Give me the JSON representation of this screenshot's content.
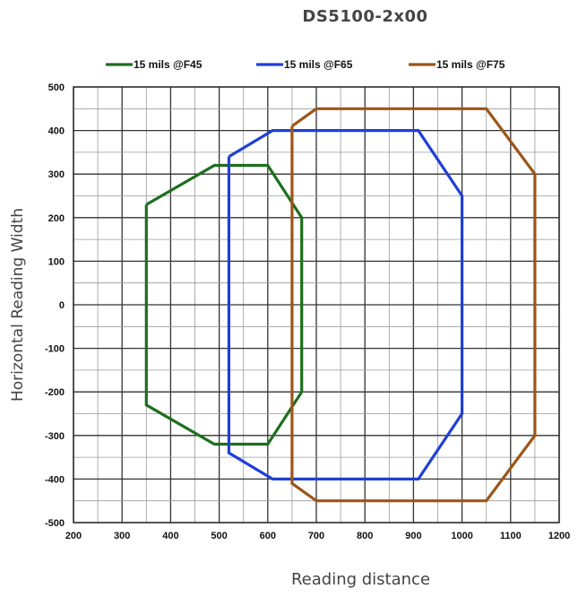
{
  "chart_data": {
    "type": "line",
    "title": "DS5100-2x00",
    "xlabel": "Reading distance",
    "ylabel": "Horizontal Reading Width",
    "xlim": [
      200,
      1200
    ],
    "ylim": [
      -500,
      500
    ],
    "x_ticks": [
      "200",
      "300",
      "400",
      "500",
      "600",
      "700",
      "800",
      "900",
      "1000",
      "1100",
      "1200"
    ],
    "y_ticks": [
      "500",
      "400",
      "300",
      "200",
      "100",
      "0",
      "-100",
      "-200",
      "-300",
      "-400",
      "-500"
    ],
    "grid": true,
    "legend_position": "top",
    "series": [
      {
        "name": "15 mils @F45",
        "color": "#1e6e1e",
        "points": [
          [
            350,
            230
          ],
          [
            490,
            320
          ],
          [
            600,
            320
          ],
          [
            670,
            200
          ],
          [
            670,
            -200
          ],
          [
            600,
            -320
          ],
          [
            490,
            -320
          ],
          [
            350,
            -230
          ],
          [
            350,
            230
          ]
        ]
      },
      {
        "name": "15 mils @F65",
        "color": "#1f3fd6",
        "points": [
          [
            520,
            340
          ],
          [
            610,
            400
          ],
          [
            910,
            400
          ],
          [
            1000,
            250
          ],
          [
            1000,
            -250
          ],
          [
            910,
            -400
          ],
          [
            610,
            -400
          ],
          [
            520,
            -340
          ],
          [
            520,
            340
          ]
        ]
      },
      {
        "name": "15 mils @F75",
        "color": "#9c5518",
        "points": [
          [
            650,
            410
          ],
          [
            700,
            450
          ],
          [
            1050,
            450
          ],
          [
            1150,
            300
          ],
          [
            1150,
            -300
          ],
          [
            1050,
            -450
          ],
          [
            700,
            -450
          ],
          [
            650,
            -410
          ],
          [
            650,
            410
          ]
        ]
      }
    ]
  }
}
